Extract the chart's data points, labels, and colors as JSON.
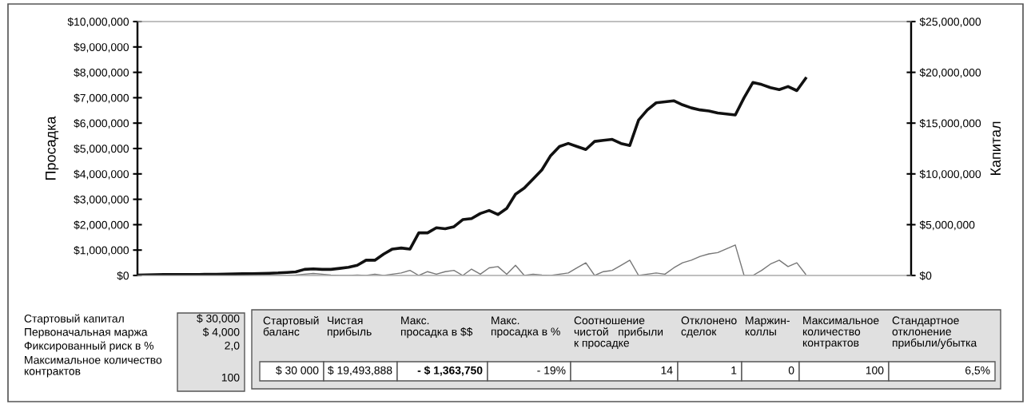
{
  "chart_data": {
    "type": "line",
    "ylabel": "Просадка",
    "y2label": "Капитал",
    "categories": [
      null,
      null,
      null,
      null,
      null,
      null,
      null,
      null,
      null,
      null,
      null,
      null,
      null,
      null,
      null,
      null,
      null,
      null,
      null,
      null,
      null,
      null,
      null,
      null,
      null,
      null,
      null,
      null,
      null,
      null,
      null,
      null,
      null,
      null,
      null,
      null,
      null,
      null,
      null,
      null,
      null,
      null,
      null,
      null,
      null,
      null,
      null,
      null,
      null,
      null,
      null,
      null,
      null,
      null,
      null,
      null,
      null,
      null,
      null,
      null,
      null,
      null,
      null,
      null,
      null,
      null,
      null,
      null,
      null,
      null,
      null,
      null,
      null,
      null,
      null,
      null,
      null,
      null,
      null,
      null,
      null,
      null,
      null,
      null,
      null,
      null,
      null,
      null,
      null
    ],
    "series": [
      {
        "axis": "y",
        "color": "#777777",
        "line_style": "solid",
        "values": [
          0,
          0,
          0,
          0,
          0,
          0,
          0,
          0,
          0,
          0,
          0,
          0,
          0,
          0,
          0,
          0,
          0,
          0,
          20000,
          50000,
          80000,
          50000,
          20000,
          0,
          0,
          20000,
          0,
          50000,
          0,
          50000,
          100000,
          200000,
          0,
          150000,
          50000,
          150000,
          200000,
          0,
          250000,
          50000,
          300000,
          350000,
          50000,
          400000,
          0,
          50000,
          20000,
          0,
          50000,
          100000,
          300000,
          500000,
          0,
          150000,
          200000,
          400000,
          600000,
          0,
          50000,
          100000,
          50000,
          300000,
          500000,
          600000,
          750000,
          850000,
          900000,
          1050000,
          1200000,
          0,
          0,
          200000,
          450000,
          600000,
          350000,
          500000,
          50000,
          null,
          null,
          null,
          null,
          null,
          null,
          null,
          null,
          null,
          null,
          null,
          null
        ]
      },
      {
        "axis": "y2",
        "color": "#111111",
        "line_style": "solid",
        "values": [
          30000,
          50000,
          80000,
          100000,
          100000,
          100000,
          100000,
          100000,
          120000,
          120000,
          140000,
          150000,
          170000,
          180000,
          200000,
          220000,
          250000,
          300000,
          350000,
          600000,
          650000,
          600000,
          600000,
          700000,
          800000,
          1000000,
          1500000,
          1500000,
          2100000,
          2600000,
          2700000,
          2600000,
          4200000,
          4200000,
          4700000,
          4600000,
          4800000,
          5500000,
          5600000,
          6100000,
          6400000,
          6000000,
          6600000,
          8000000,
          8600000,
          9500000,
          10400000,
          11800000,
          12700000,
          13000000,
          12700000,
          12400000,
          13200000,
          13300000,
          13400000,
          13000000,
          12800000,
          15300000,
          16300000,
          17000000,
          17100000,
          17200000,
          16800000,
          16500000,
          16300000,
          16200000,
          16000000,
          15900000,
          15800000,
          17500000,
          19000000,
          18800000,
          18500000,
          18300000,
          18600000,
          18200000,
          19400000,
          null,
          null,
          null,
          null,
          null,
          null,
          null,
          null,
          null,
          null,
          null,
          null
        ]
      }
    ],
    "ylim": [
      0,
      10000000
    ],
    "yticks": [
      {
        "value": 0,
        "label": "$0"
      },
      {
        "value": 1000000,
        "label": "$1,000,000"
      },
      {
        "value": 2000000,
        "label": "$2,000,000"
      },
      {
        "value": 3000000,
        "label": "$3,000,000"
      },
      {
        "value": 4000000,
        "label": "$4,000,000"
      },
      {
        "value": 5000000,
        "label": "$5,000,000"
      },
      {
        "value": 6000000,
        "label": "$6,000,000"
      },
      {
        "value": 7000000,
        "label": "$7,000,000"
      },
      {
        "value": 8000000,
        "label": "$8,000,000"
      },
      {
        "value": 9000000,
        "label": "$9,000,000"
      },
      {
        "value": 10000000,
        "label": "$10,000,000"
      }
    ],
    "y2lim": [
      0,
      25000000
    ],
    "y2ticks": [
      {
        "value": 0,
        "label": "$0"
      },
      {
        "value": 5000000,
        "label": "$5,000,000"
      },
      {
        "value": 10000000,
        "label": "$10,000,000"
      },
      {
        "value": 15000000,
        "label": "$15,000,000"
      },
      {
        "value": 20000000,
        "label": "$20,000,000"
      },
      {
        "value": 25000000,
        "label": "$25,000,000"
      }
    ],
    "tick_labels": "y",
    "grid": false,
    "annotations": [
      "Стартовый капитал",
      "$ 30,000",
      "Первоначальная маржа",
      "$ 4,000",
      "Фиксированный риск в %",
      "2,0",
      "Максимальное количество\nконтрактов",
      "100",
      "Стартовый\nбаланс",
      "Чистая\nприбыль",
      "Макс.\nпросадка в $$",
      "Макс.\nпросадка в %",
      "Соотношение\nчистой   прибыли\nк просадке",
      "Отклонено\nсделок",
      "Маржин-\nколлы",
      "Максимальное\nколичество\nконтрактов",
      "Стандартное\nотклонение\nприбыли/убытка",
      "$ 30 000",
      "$ 19,493,888",
      "- $ 1,363,750",
      "- 19%",
      "14",
      "1",
      "0",
      "100",
      "6,5%"
    ]
  }
}
